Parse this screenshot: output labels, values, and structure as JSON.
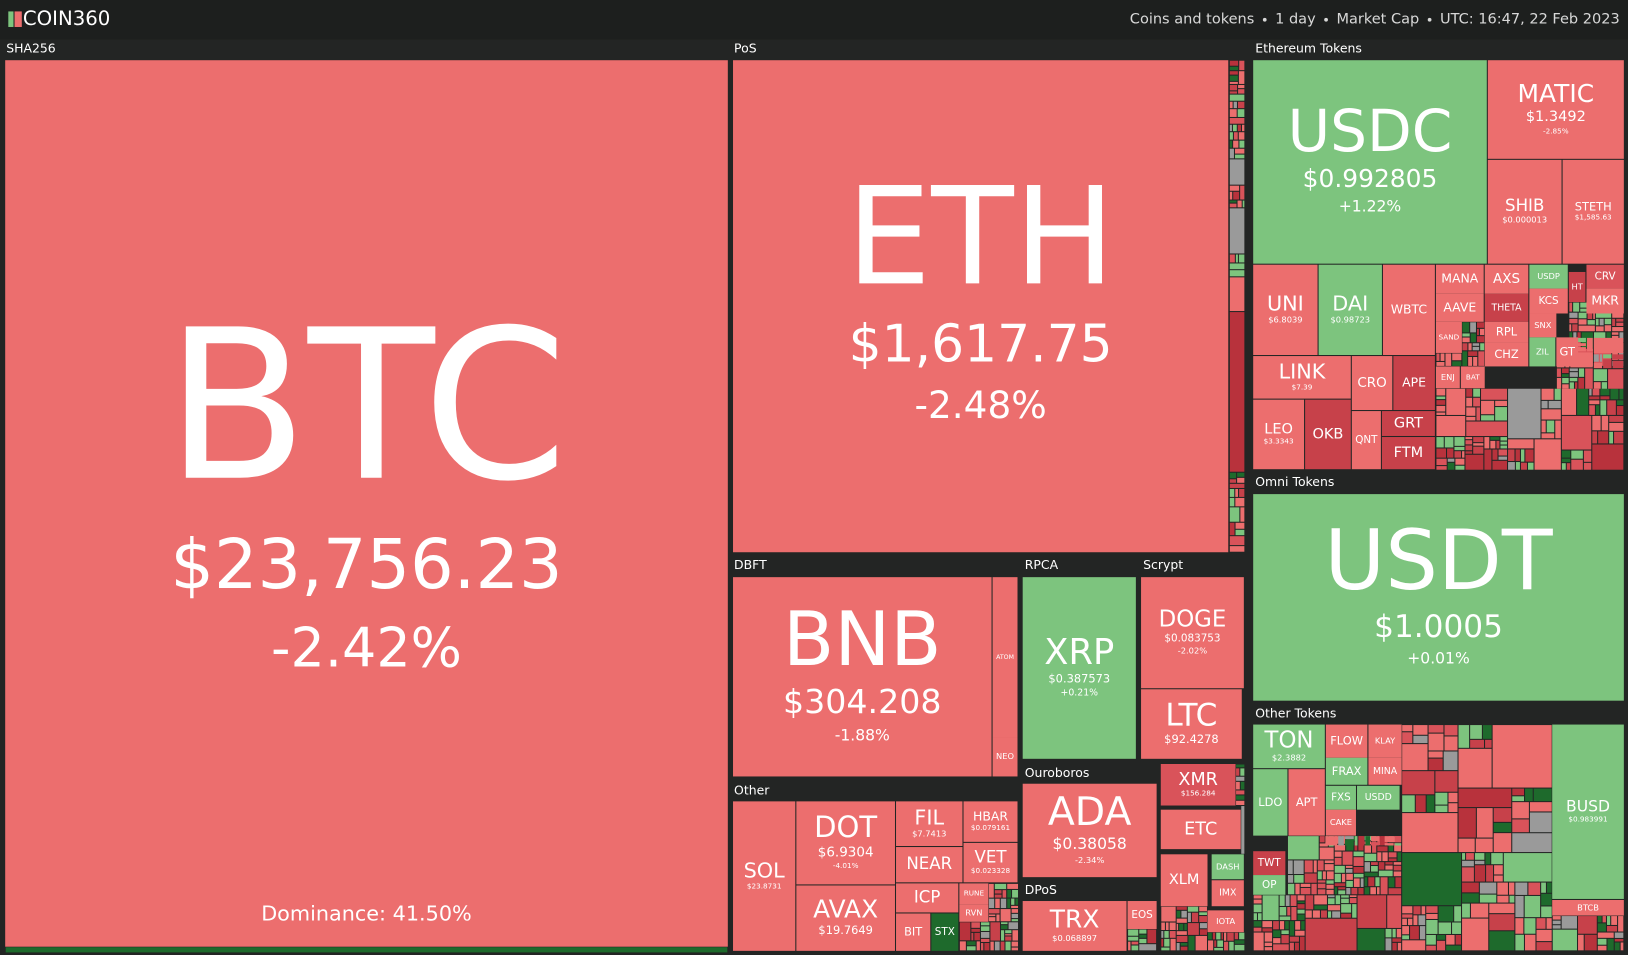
{
  "header": {
    "logo": "COIN360",
    "filters": [
      "Coins and tokens",
      "1 day",
      "Market Cap",
      "UTC: 16:47, 22 Feb 2023"
    ]
  },
  "dominance": "Dominance: 41.50%",
  "sectors": [
    {
      "name": "SHA256",
      "coins": [
        {
          "symbol": "BTC",
          "price": "$23,756.23",
          "change": "-2.42%",
          "color": "#ec6e6e"
        }
      ]
    },
    {
      "name": "PoS",
      "coins": [
        {
          "symbol": "ETH",
          "price": "$1,617.75",
          "change": "-2.48%",
          "color": "#ec6e6e"
        }
      ]
    },
    {
      "name": "DBFT",
      "coins": [
        {
          "symbol": "BNB",
          "price": "$304.208",
          "change": "-1.88%",
          "color": "#ec6e6e"
        },
        {
          "symbol": "ATOM",
          "color": "#ec6e6e"
        },
        {
          "symbol": "NEO",
          "color": "#ec6e6e"
        }
      ]
    },
    {
      "name": "RPCA",
      "coins": [
        {
          "symbol": "XRP",
          "price": "$0.387573",
          "change": "+0.21%",
          "color": "#7dc47e"
        }
      ]
    },
    {
      "name": "Scrypt",
      "coins": [
        {
          "symbol": "DOGE",
          "price": "$0.083753",
          "change": "-2.02%",
          "color": "#ec6e6e"
        },
        {
          "symbol": "LTC",
          "price": "$92.4278",
          "color": "#ec6e6e"
        }
      ]
    },
    {
      "name": "Ethereum Tokens",
      "coins": [
        {
          "symbol": "USDC",
          "price": "$0.992805",
          "change": "+1.22%",
          "color": "#7dc47e"
        },
        {
          "symbol": "MATIC",
          "price": "$1.3492",
          "change": "-2.85%",
          "color": "#ec6e6e"
        },
        {
          "symbol": "SHIB",
          "price": "$0.000013",
          "color": "#ec6e6e"
        },
        {
          "symbol": "STETH",
          "price": "$1,585.63",
          "color": "#ec6e6e"
        },
        {
          "symbol": "UNI",
          "price": "$6.8039",
          "color": "#ec6e6e"
        },
        {
          "symbol": "DAI",
          "price": "$0.98723",
          "color": "#7dc47e"
        },
        {
          "symbol": "WBTC",
          "color": "#ec6e6e"
        },
        {
          "symbol": "MANA",
          "color": "#ec6e6e"
        },
        {
          "symbol": "AXS",
          "color": "#ec6e6e"
        },
        {
          "symbol": "USDP",
          "color": "#7dc47e"
        },
        {
          "symbol": "CRV",
          "color": "#d9535a"
        },
        {
          "symbol": "AAVE",
          "color": "#ec6e6e"
        },
        {
          "symbol": "THETA",
          "color": "#c7414a"
        },
        {
          "symbol": "KCS",
          "color": "#ec6e6e"
        },
        {
          "symbol": "MKR",
          "color": "#ec6e6e"
        },
        {
          "symbol": "LINK",
          "price": "$7.39",
          "color": "#ec6e6e"
        },
        {
          "symbol": "CRO",
          "color": "#ec6e6e"
        },
        {
          "symbol": "APE",
          "color": "#c7414a"
        },
        {
          "symbol": "LEO",
          "price": "$3.3343",
          "color": "#ec6e6e"
        },
        {
          "symbol": "OKB",
          "color": "#c7414a"
        },
        {
          "symbol": "QNT",
          "color": "#ec6e6e"
        },
        {
          "symbol": "GRT",
          "color": "#c7414a"
        },
        {
          "symbol": "FTM",
          "color": "#c7414a"
        },
        {
          "symbol": "RPL",
          "color": "#ec6e6e"
        },
        {
          "symbol": "CHZ",
          "color": "#ec6e6e"
        },
        {
          "symbol": "SAND",
          "color": "#ec6e6e"
        },
        {
          "symbol": "ENJ",
          "color": "#ec6e6e"
        },
        {
          "symbol": "BAT",
          "color": "#ec6e6e"
        },
        {
          "symbol": "SNX",
          "color": "#ec6e6e"
        },
        {
          "symbol": "ZIL",
          "color": "#7dc47e"
        },
        {
          "symbol": "GT",
          "color": "#ec6e6e"
        },
        {
          "symbol": "HT",
          "color": "#c7414a"
        }
      ]
    },
    {
      "name": "Omni Tokens",
      "coins": [
        {
          "symbol": "USDT",
          "price": "$1.0005",
          "change": "+0.01%",
          "color": "#7dc47e"
        }
      ]
    },
    {
      "name": "Other Tokens",
      "coins": [
        {
          "symbol": "BUSD",
          "price": "$0.983991",
          "color": "#7dc47e"
        },
        {
          "symbol": "BTCB",
          "color": "#ec6e6e"
        },
        {
          "symbol": "TON",
          "price": "$2.3882",
          "color": "#7dc47e"
        },
        {
          "symbol": "FLOW",
          "color": "#ec6e6e"
        },
        {
          "symbol": "KLAY",
          "color": "#ec6e6e"
        },
        {
          "symbol": "LDO",
          "color": "#7dc47e"
        },
        {
          "symbol": "APT",
          "color": "#ec6e6e"
        },
        {
          "symbol": "FRAX",
          "color": "#7dc47e"
        },
        {
          "symbol": "MINA",
          "color": "#ec6e6e"
        },
        {
          "symbol": "FXS",
          "color": "#7dc47e"
        },
        {
          "symbol": "USDD",
          "color": "#7dc47e"
        },
        {
          "symbol": "CAKE",
          "color": "#ec6e6e"
        },
        {
          "symbol": "TWT",
          "color": "#c7414a"
        },
        {
          "symbol": "OP",
          "color": "#7dc47e"
        }
      ]
    },
    {
      "name": "Other",
      "coins": [
        {
          "symbol": "SOL",
          "price": "$23.8731",
          "color": "#ec6e6e"
        },
        {
          "symbol": "DOT",
          "price": "$6.9304",
          "change": "-4.01%",
          "color": "#ec6e6e"
        },
        {
          "symbol": "AVAX",
          "price": "$19.7649",
          "color": "#ec6e6e"
        },
        {
          "symbol": "FIL",
          "price": "$7.7413",
          "color": "#ec6e6e"
        },
        {
          "symbol": "HBAR",
          "price": "$0.079161",
          "color": "#ec6e6e"
        },
        {
          "symbol": "NEAR",
          "color": "#ec6e6e"
        },
        {
          "symbol": "VET",
          "price": "$0.023328",
          "color": "#ec6e6e"
        },
        {
          "symbol": "ICP",
          "color": "#ec6e6e"
        },
        {
          "symbol": "BIT",
          "color": "#ec6e6e"
        },
        {
          "symbol": "STX",
          "color": "#1e6a2c"
        },
        {
          "symbol": "RUNE",
          "color": "#ec6e6e"
        },
        {
          "symbol": "RVN",
          "color": "#ec6e6e"
        }
      ]
    },
    {
      "name": "Ouroboros",
      "coins": [
        {
          "symbol": "ADA",
          "price": "$0.38058",
          "change": "-2.34%",
          "color": "#ec6e6e"
        }
      ]
    },
    {
      "name": "DPoS",
      "coins": [
        {
          "symbol": "TRX",
          "price": "$0.068897",
          "color": "#ec6e6e"
        },
        {
          "symbol": "EOS",
          "color": "#ec6e6e"
        }
      ]
    },
    {
      "coins": [
        {
          "symbol": "XMR",
          "price": "$156.284",
          "color": "#d9535a"
        },
        {
          "symbol": "ETC",
          "color": "#ec6e6e"
        },
        {
          "symbol": "XLM",
          "color": "#ec6e6e"
        },
        {
          "symbol": "DASH",
          "color": "#7dc47e"
        },
        {
          "symbol": "IMX",
          "color": "#ec6e6e"
        },
        {
          "symbol": "IOTA",
          "color": "#ec6e6e"
        }
      ]
    }
  ]
}
